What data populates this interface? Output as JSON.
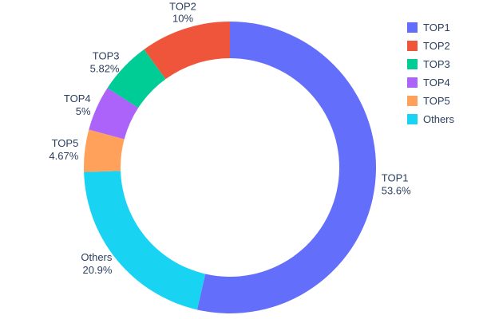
{
  "chart_data": {
    "type": "pie",
    "subtype": "donut",
    "hole": 0.75,
    "title": "",
    "labels": [
      "TOP1",
      "TOP2",
      "TOP3",
      "TOP4",
      "TOP5",
      "Others"
    ],
    "values": [
      53.6,
      10,
      5.82,
      5,
      4.67,
      20.9
    ],
    "value_labels": [
      "53.6%",
      "10%",
      "5.82%",
      "5%",
      "4.67%",
      "20.9%"
    ],
    "colors": [
      "#636EFA",
      "#EF553B",
      "#00CC96",
      "#AB63FA",
      "#FFA15A",
      "#19D3F3"
    ],
    "clockwise_order_from_top": [
      0,
      5,
      4,
      3,
      2,
      1
    ],
    "legend": {
      "position": "top-right",
      "entries": [
        "TOP1",
        "TOP2",
        "TOP3",
        "TOP4",
        "TOP5",
        "Others"
      ]
    },
    "text_color": "#2a3f5f",
    "background": "#ffffff"
  }
}
